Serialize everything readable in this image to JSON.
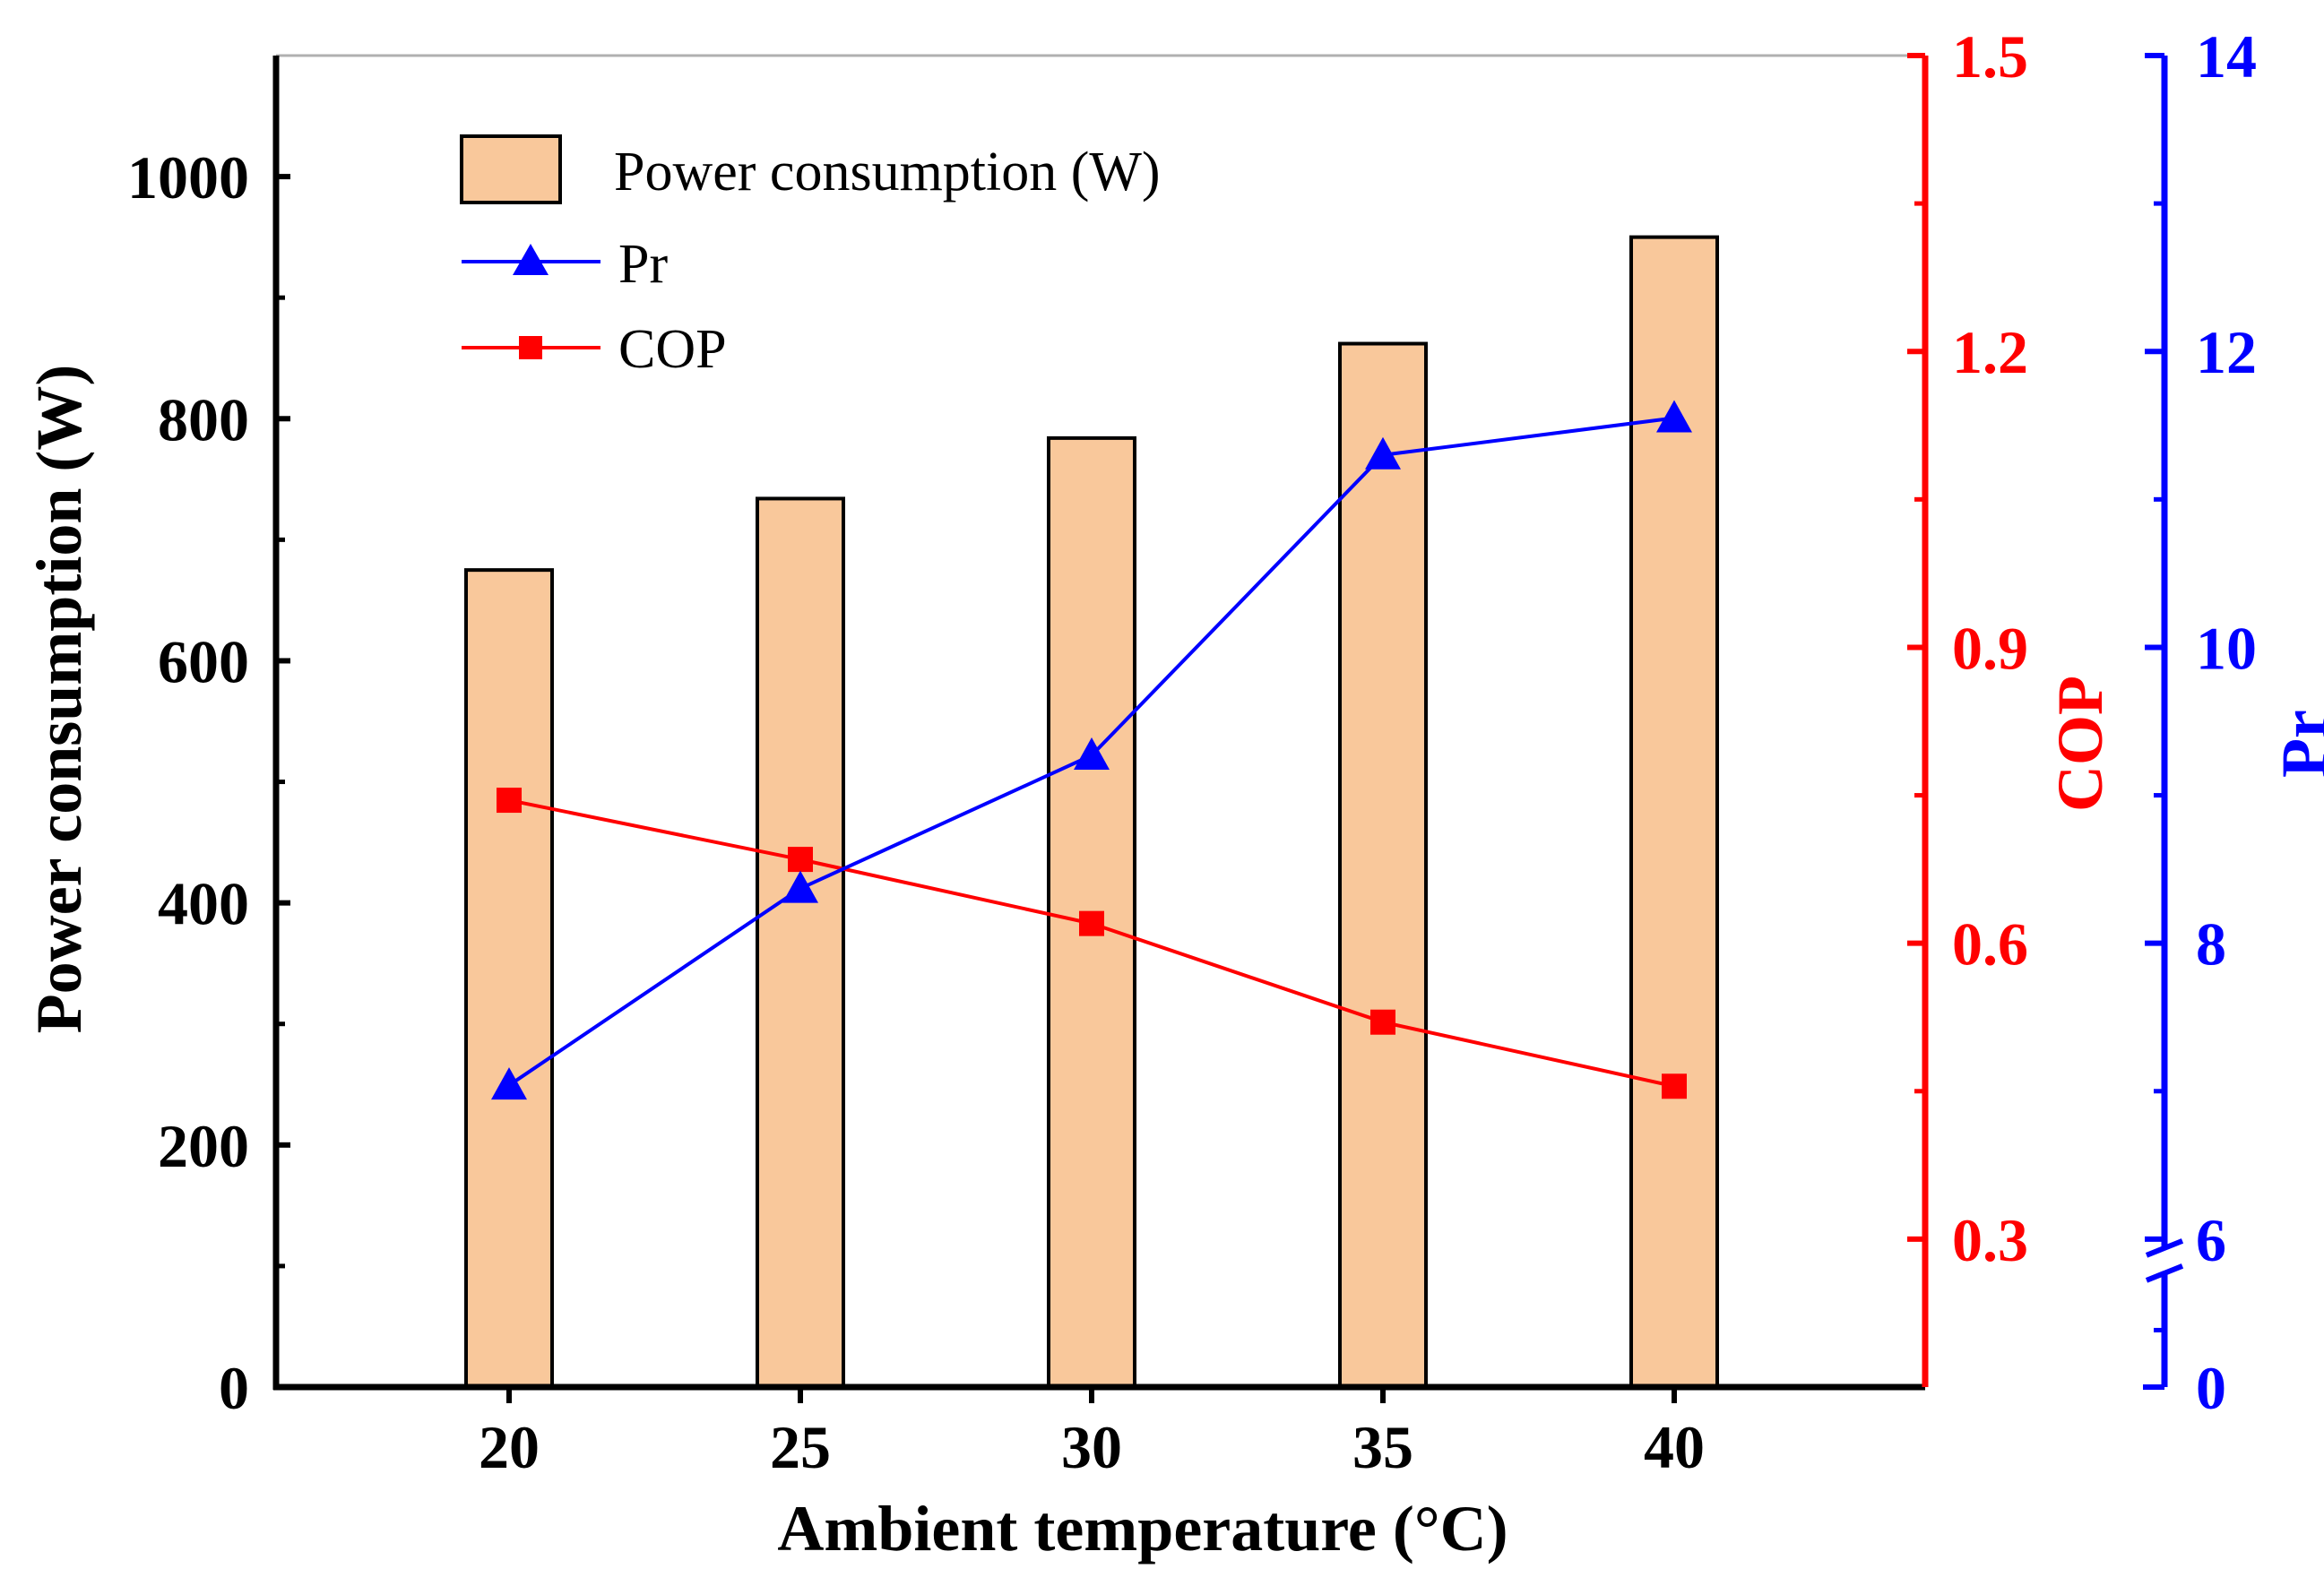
{
  "chart_data": {
    "type": "bar",
    "categories": [
      "20",
      "25",
      "30",
      "35",
      "40"
    ],
    "series": [
      {
        "name": "Power consumption (W)",
        "type": "bar",
        "axis": "left",
        "values": [
          675,
          734,
          784,
          862,
          950
        ],
        "color": "#f9c89b"
      },
      {
        "name": "Pr",
        "type": "line",
        "axis": "right-outer",
        "marker": "triangle",
        "values": [
          7.04,
          8.37,
          9.27,
          11.3,
          11.55
        ],
        "color": "#0000ff"
      },
      {
        "name": "COP",
        "type": "line",
        "axis": "right-inner",
        "marker": "square",
        "values": [
          0.745,
          0.685,
          0.62,
          0.52,
          0.455
        ],
        "color": "#ff0000"
      }
    ],
    "xlabel": "Ambient temperature (°C)",
    "ylabel": "Power consumption (W)",
    "ylim": [
      0,
      1100
    ],
    "yticks": [
      "0",
      "200",
      "400",
      "600",
      "800",
      "1000"
    ],
    "y2label": "COP",
    "y2lim": [
      0.15,
      1.5
    ],
    "y2ticks": [
      "0.3",
      "0.6",
      "0.9",
      "1.2",
      "1.5"
    ],
    "y3label": "Pr",
    "y3ticks": [
      "0",
      "6",
      "8",
      "10",
      "12",
      "14"
    ],
    "y3_axis_break": "between 0 and 6",
    "legend": "top-left",
    "grid": false,
    "colors": {
      "axis": "#000000",
      "cop_axis": "#ff0000",
      "pr_axis": "#0000ff"
    }
  }
}
